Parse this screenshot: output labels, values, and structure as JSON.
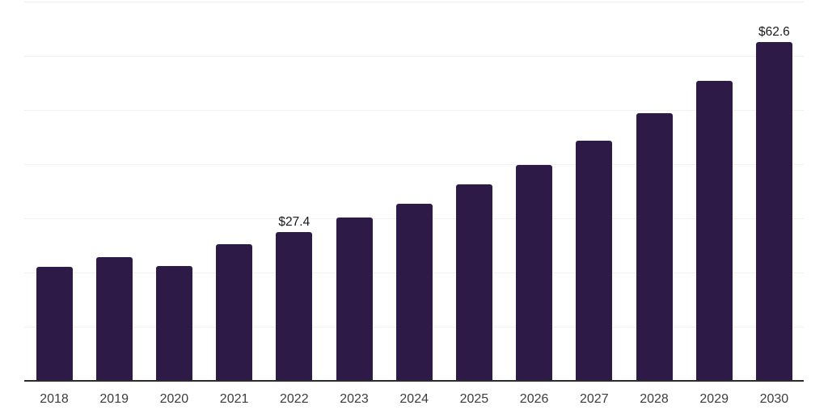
{
  "chart_data": {
    "type": "bar",
    "title": "",
    "xlabel": "",
    "ylabel": "",
    "categories": [
      "2018",
      "2019",
      "2020",
      "2021",
      "2022",
      "2023",
      "2024",
      "2025",
      "2026",
      "2027",
      "2028",
      "2029",
      "2030"
    ],
    "values": [
      21.1,
      22.9,
      21.2,
      25.2,
      27.4,
      30.2,
      32.7,
      36.3,
      39.9,
      44.4,
      49.4,
      55.3,
      62.6
    ],
    "data_labels": [
      {
        "category": "2022",
        "text": "$27.4"
      },
      {
        "category": "2030",
        "text": "$62.6"
      }
    ],
    "ylim": [
      0,
      70
    ],
    "gridline_step": 10,
    "grid": "horizontal-only",
    "legend": "none",
    "y_tick_labels_visible": false,
    "colors": {
      "bar": "#2E1A47",
      "axis_line": "#2B2B2B",
      "gridline": "#F1F1F4",
      "tick_label": "#3C3C3C",
      "data_label": "#1A1A1A",
      "background": "#FFFFFF"
    }
  }
}
